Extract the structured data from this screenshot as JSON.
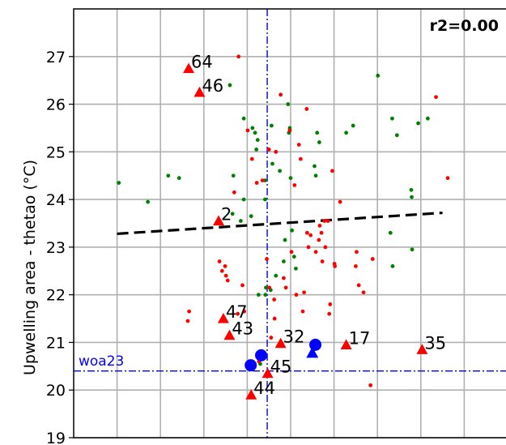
{
  "chart_data": {
    "type": "scatter",
    "title": "",
    "xlabel": "",
    "ylabel": "Upwelling area - thetao (°C)",
    "ylim": [
      19,
      28
    ],
    "yticks": [
      19,
      20,
      21,
      22,
      23,
      24,
      25,
      26,
      27
    ],
    "xlim": [
      0,
      100
    ],
    "x_gridlines": [
      10,
      20,
      30,
      40,
      50,
      60,
      70,
      80,
      90
    ],
    "grid": true,
    "stat_label": "r2=0.00",
    "reference": {
      "label": "woa23",
      "y": 20.4,
      "x": 44.6,
      "color": "#0000ff"
    },
    "trend_line": {
      "x": [
        10,
        85
      ],
      "y": [
        23.28,
        23.72
      ],
      "color": "#000000"
    },
    "colors": {
      "red": "#ff0000",
      "green": "#008000",
      "blue": "#0000ff"
    },
    "green_points": [
      {
        "x": 10.4,
        "y": 24.35
      },
      {
        "x": 17.1,
        "y": 23.95
      },
      {
        "x": 21.8,
        "y": 24.5
      },
      {
        "x": 24.3,
        "y": 24.45
      },
      {
        "x": 36.0,
        "y": 26.4
      },
      {
        "x": 36.8,
        "y": 24.5
      },
      {
        "x": 36.6,
        "y": 23.7
      },
      {
        "x": 38.5,
        "y": 23.55
      },
      {
        "x": 39.2,
        "y": 25.7
      },
      {
        "x": 39.2,
        "y": 24.0
      },
      {
        "x": 40.9,
        "y": 23.65
      },
      {
        "x": 41.2,
        "y": 25.5
      },
      {
        "x": 41.8,
        "y": 25.4
      },
      {
        "x": 42.1,
        "y": 25.05
      },
      {
        "x": 42.4,
        "y": 25.25
      },
      {
        "x": 42.6,
        "y": 22.0
      },
      {
        "x": 43.0,
        "y": 20.55
      },
      {
        "x": 44.1,
        "y": 24.4
      },
      {
        "x": 44.1,
        "y": 24.0
      },
      {
        "x": 44.2,
        "y": 22.0
      },
      {
        "x": 44.3,
        "y": 22.15
      },
      {
        "x": 45.4,
        "y": 22.1
      },
      {
        "x": 45.6,
        "y": 25.55
      },
      {
        "x": 45.8,
        "y": 24.75
      },
      {
        "x": 46.6,
        "y": 22.4
      },
      {
        "x": 47.5,
        "y": 24.6
      },
      {
        "x": 48.4,
        "y": 22.7
      },
      {
        "x": 48.7,
        "y": 23.15
      },
      {
        "x": 49.4,
        "y": 26.0
      },
      {
        "x": 49.8,
        "y": 25.5
      },
      {
        "x": 49.6,
        "y": 25.4
      },
      {
        "x": 50.0,
        "y": 24.45
      },
      {
        "x": 50.3,
        "y": 23.35
      },
      {
        "x": 50.8,
        "y": 22.8
      },
      {
        "x": 51.2,
        "y": 22.55
      },
      {
        "x": 55.5,
        "y": 24.7
      },
      {
        "x": 55.8,
        "y": 24.5
      },
      {
        "x": 56.1,
        "y": 25.4
      },
      {
        "x": 56.6,
        "y": 25.2
      },
      {
        "x": 62.8,
        "y": 25.4
      },
      {
        "x": 64.4,
        "y": 25.55
      },
      {
        "x": 70.1,
        "y": 26.6
      },
      {
        "x": 73.0,
        "y": 23.3
      },
      {
        "x": 73.5,
        "y": 22.6
      },
      {
        "x": 73.4,
        "y": 25.7
      },
      {
        "x": 74.5,
        "y": 25.35
      },
      {
        "x": 77.8,
        "y": 24.2
      },
      {
        "x": 77.9,
        "y": 24.05
      },
      {
        "x": 78.0,
        "y": 22.95
      },
      {
        "x": 79.4,
        "y": 25.6
      },
      {
        "x": 81.6,
        "y": 25.7
      }
    ],
    "red_points": [
      {
        "x": 26.6,
        "y": 21.65
      },
      {
        "x": 26.3,
        "y": 21.45
      },
      {
        "x": 33.6,
        "y": 22.7
      },
      {
        "x": 34.2,
        "y": 22.5
      },
      {
        "x": 34.9,
        "y": 22.6
      },
      {
        "x": 35.1,
        "y": 22.4
      },
      {
        "x": 35.5,
        "y": 22.3
      },
      {
        "x": 37.0,
        "y": 24.15
      },
      {
        "x": 38.0,
        "y": 27.0
      },
      {
        "x": 37.8,
        "y": 21.6
      },
      {
        "x": 38.9,
        "y": 22.2
      },
      {
        "x": 39.3,
        "y": 21.65
      },
      {
        "x": 40.1,
        "y": 25.45
      },
      {
        "x": 41.1,
        "y": 24.85
      },
      {
        "x": 42.2,
        "y": 24.35
      },
      {
        "x": 42.7,
        "y": 20.6
      },
      {
        "x": 43.5,
        "y": 24.4
      },
      {
        "x": 44.5,
        "y": 22.75
      },
      {
        "x": 45.0,
        "y": 25.05
      },
      {
        "x": 45.1,
        "y": 22.15
      },
      {
        "x": 45.5,
        "y": 21.1
      },
      {
        "x": 46.3,
        "y": 21.5
      },
      {
        "x": 46.2,
        "y": 21.9
      },
      {
        "x": 46.6,
        "y": 25.0
      },
      {
        "x": 47.7,
        "y": 26.2
      },
      {
        "x": 48.4,
        "y": 22.35
      },
      {
        "x": 48.9,
        "y": 22.15
      },
      {
        "x": 49.8,
        "y": 25.45
      },
      {
        "x": 50.2,
        "y": 22.9
      },
      {
        "x": 50.9,
        "y": 24.3
      },
      {
        "x": 51.3,
        "y": 22.0
      },
      {
        "x": 51.9,
        "y": 25.15
      },
      {
        "x": 52.3,
        "y": 24.85
      },
      {
        "x": 52.8,
        "y": 21.65
      },
      {
        "x": 53.1,
        "y": 22.05
      },
      {
        "x": 53.7,
        "y": 25.9
      },
      {
        "x": 53.8,
        "y": 23.3
      },
      {
        "x": 54.1,
        "y": 23.0
      },
      {
        "x": 54.6,
        "y": 23.25
      },
      {
        "x": 55.8,
        "y": 22.9
      },
      {
        "x": 56.5,
        "y": 23.15
      },
      {
        "x": 56.7,
        "y": 23.45
      },
      {
        "x": 57.1,
        "y": 23.3
      },
      {
        "x": 57.3,
        "y": 22.7
      },
      {
        "x": 57.8,
        "y": 23.55
      },
      {
        "x": 58.0,
        "y": 23.0
      },
      {
        "x": 58.6,
        "y": 23.55
      },
      {
        "x": 58.9,
        "y": 21.6
      },
      {
        "x": 59.1,
        "y": 21.8
      },
      {
        "x": 59.6,
        "y": 24.6
      },
      {
        "x": 60.2,
        "y": 22.6
      },
      {
        "x": 60.1,
        "y": 22.65
      },
      {
        "x": 61.4,
        "y": 23.95
      },
      {
        "x": 65.0,
        "y": 22.6
      },
      {
        "x": 65.2,
        "y": 22.9
      },
      {
        "x": 65.7,
        "y": 22.2
      },
      {
        "x": 66.8,
        "y": 22.05
      },
      {
        "x": 68.4,
        "y": 20.1
      },
      {
        "x": 68.9,
        "y": 22.75
      },
      {
        "x": 83.5,
        "y": 26.15
      },
      {
        "x": 86.2,
        "y": 24.45
      }
    ],
    "labeled_markers": [
      {
        "label": "64",
        "x": 26.5,
        "y": 26.75
      },
      {
        "label": "46",
        "x": 29.0,
        "y": 26.25
      },
      {
        "label": "2",
        "x": 33.4,
        "y": 23.55
      },
      {
        "label": "47",
        "x": 34.5,
        "y": 21.5
      },
      {
        "label": "43",
        "x": 35.9,
        "y": 21.15
      },
      {
        "label": "32",
        "x": 47.7,
        "y": 20.98
      },
      {
        "label": "17",
        "x": 62.8,
        "y": 20.95
      },
      {
        "label": "35",
        "x": 80.3,
        "y": 20.85
      },
      {
        "label": "45",
        "x": 44.7,
        "y": 20.35
      },
      {
        "label": "44",
        "x": 40.9,
        "y": 19.9
      }
    ],
    "blue_circles": [
      {
        "x": 40.8,
        "y": 20.52
      },
      {
        "x": 43.2,
        "y": 20.73
      },
      {
        "x": 55.7,
        "y": 20.95
      }
    ],
    "blue_triangles": [
      {
        "x": 55.0,
        "y": 20.78
      }
    ]
  }
}
